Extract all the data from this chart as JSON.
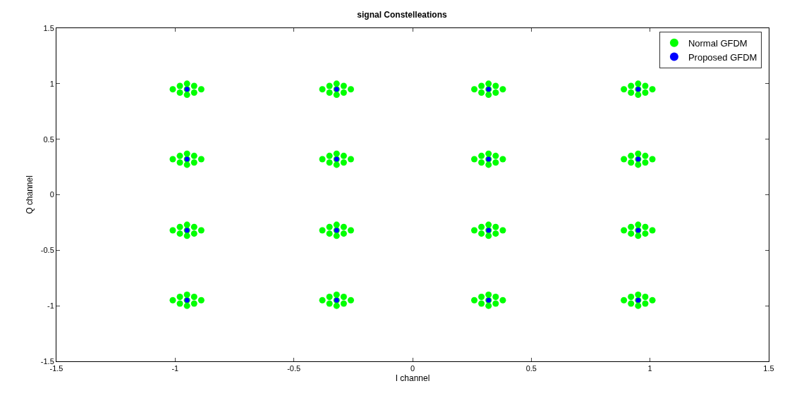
{
  "chart_data": {
    "type": "scatter",
    "title": "signal Constelleations",
    "xlabel": "I channel",
    "ylabel": "Q channel",
    "xlim": [
      -1.5,
      1.5
    ],
    "xticks": [
      -1.5,
      -1,
      -0.5,
      0,
      0.5,
      1,
      1.5
    ],
    "ylim": [
      -1.5,
      1.5
    ],
    "yticks": [
      -1.5,
      -1,
      -0.5,
      0,
      0.5,
      1,
      1.5
    ],
    "grid": false,
    "legend": "top right",
    "marker": "circle",
    "series": [
      {
        "name": "Normal GFDM",
        "color": "#00ff00",
        "x": [
          -1.01,
          -0.89,
          -0.98,
          -0.92,
          -0.98,
          -0.92,
          -0.95,
          -0.95,
          -0.95,
          -0.38,
          -0.26,
          -0.35,
          -0.29,
          -0.35,
          -0.29,
          -0.32,
          -0.32,
          -0.32,
          0.26,
          0.38,
          0.29,
          0.35,
          0.29,
          0.35,
          0.32,
          0.32,
          0.32,
          0.89,
          1.01,
          0.92,
          0.98,
          0.92,
          0.98,
          0.95,
          0.95,
          0.95,
          -1.01,
          -0.89,
          -0.98,
          -0.92,
          -0.98,
          -0.92,
          -0.95,
          -0.95,
          -0.95,
          -0.38,
          -0.26,
          -0.35,
          -0.29,
          -0.35,
          -0.29,
          -0.32,
          -0.32,
          -0.32,
          0.26,
          0.38,
          0.29,
          0.35,
          0.29,
          0.35,
          0.32,
          0.32,
          0.32,
          0.89,
          1.01,
          0.92,
          0.98,
          0.92,
          0.98,
          0.95,
          0.95,
          0.95,
          -1.01,
          -0.89,
          -0.98,
          -0.92,
          -0.98,
          -0.92,
          -0.95,
          -0.95,
          -0.95,
          -0.38,
          -0.26,
          -0.35,
          -0.29,
          -0.35,
          -0.29,
          -0.32,
          -0.32,
          -0.32,
          0.26,
          0.38,
          0.29,
          0.35,
          0.29,
          0.35,
          0.32,
          0.32,
          0.32,
          0.89,
          1.01,
          0.92,
          0.98,
          0.92,
          0.98,
          0.95,
          0.95,
          0.95,
          -1.01,
          -0.89,
          -0.98,
          -0.92,
          -0.98,
          -0.92,
          -0.95,
          -0.95,
          -0.95,
          -0.38,
          -0.26,
          -0.35,
          -0.29,
          -0.35,
          -0.29,
          -0.32,
          -0.32,
          -0.32,
          0.26,
          0.38,
          0.29,
          0.35,
          0.29,
          0.35,
          0.32,
          0.32,
          0.32,
          0.89,
          1.01,
          0.92,
          0.98,
          0.92,
          0.98,
          0.95,
          0.95,
          0.95
        ],
        "values": [
          0.95,
          0.95,
          0.98,
          0.98,
          0.92,
          0.92,
          1.0,
          0.9,
          0.95,
          0.95,
          0.95,
          0.98,
          0.98,
          0.92,
          0.92,
          1.0,
          0.9,
          0.95,
          0.95,
          0.95,
          0.98,
          0.98,
          0.92,
          0.92,
          1.0,
          0.9,
          0.95,
          0.95,
          0.95,
          0.98,
          0.98,
          0.92,
          0.92,
          1.0,
          0.9,
          0.95,
          0.32,
          0.32,
          0.35,
          0.35,
          0.29,
          0.29,
          0.37,
          0.27,
          0.32,
          0.32,
          0.32,
          0.35,
          0.35,
          0.29,
          0.29,
          0.37,
          0.27,
          0.32,
          0.32,
          0.32,
          0.35,
          0.35,
          0.29,
          0.29,
          0.37,
          0.27,
          0.32,
          0.32,
          0.32,
          0.35,
          0.35,
          0.29,
          0.29,
          0.37,
          0.27,
          0.32,
          -0.32,
          -0.32,
          -0.29,
          -0.29,
          -0.35,
          -0.35,
          -0.27,
          -0.37,
          -0.32,
          -0.32,
          -0.32,
          -0.29,
          -0.29,
          -0.35,
          -0.35,
          -0.27,
          -0.37,
          -0.32,
          -0.32,
          -0.32,
          -0.29,
          -0.29,
          -0.35,
          -0.35,
          -0.27,
          -0.37,
          -0.32,
          -0.32,
          -0.32,
          -0.29,
          -0.29,
          -0.35,
          -0.35,
          -0.27,
          -0.37,
          -0.32,
          -0.95,
          -0.95,
          -0.92,
          -0.92,
          -0.98,
          -0.98,
          -0.9,
          -1.0,
          -0.95,
          -0.95,
          -0.95,
          -0.92,
          -0.92,
          -0.98,
          -0.98,
          -0.9,
          -1.0,
          -0.95,
          -0.95,
          -0.95,
          -0.92,
          -0.92,
          -0.98,
          -0.98,
          -0.9,
          -1.0,
          -0.95,
          -0.95,
          -0.95,
          -0.92,
          -0.92,
          -0.98,
          -0.98,
          -0.9,
          -1.0,
          -0.95
        ]
      },
      {
        "name": "Proposed GFDM",
        "color": "#0000ff",
        "x": [
          -0.95,
          -0.32,
          0.32,
          0.95,
          -0.95,
          -0.32,
          0.32,
          0.95,
          -0.95,
          -0.32,
          0.32,
          0.95,
          -0.95,
          -0.32,
          0.32,
          0.95
        ],
        "values": [
          0.95,
          0.95,
          0.95,
          0.95,
          0.32,
          0.32,
          0.32,
          0.32,
          -0.32,
          -0.32,
          -0.32,
          -0.32,
          -0.95,
          -0.95,
          -0.95,
          -0.95
        ]
      }
    ]
  }
}
